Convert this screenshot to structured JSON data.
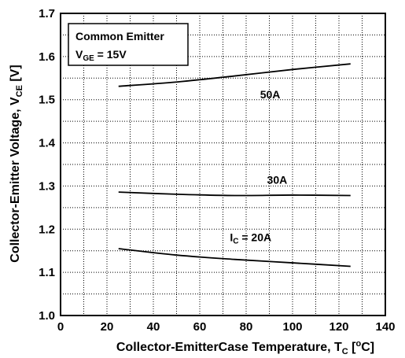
{
  "chart_data": {
    "type": "line",
    "xlabel": "Collector-EmitterCase Temperature, T",
    "xlabel_sub": "C",
    "xlabel_unit_open": " [",
    "xlabel_unit_sup": "o",
    "xlabel_unit_close": "C]",
    "ylabel": "Collector-Emitter Voltage, V",
    "ylabel_sub": "CE",
    "ylabel_unit": " [V]",
    "xlim": [
      0,
      140
    ],
    "ylim": [
      1.0,
      1.7
    ],
    "x_ticks": [
      "0",
      "20",
      "40",
      "60",
      "80",
      "100",
      "120",
      "140"
    ],
    "y_ticks": [
      "1.0",
      "1.1",
      "1.2",
      "1.3",
      "1.4",
      "1.5",
      "1.6",
      "1.7"
    ],
    "grid": true,
    "grid_style": "dotted",
    "legend_box": {
      "line1": "Common Emitter",
      "line2_prefix": "V",
      "line2_sub": "GE",
      "line2_suffix": " = 15V",
      "placement": "top-left"
    },
    "series": [
      {
        "x": [
          25,
          50,
          75,
          100,
          125
        ],
        "y": [
          1.531,
          1.541,
          1.555,
          1.57,
          1.583
        ]
      },
      {
        "x": [
          25,
          50,
          75,
          100,
          125
        ],
        "y": [
          1.286,
          1.281,
          1.278,
          1.279,
          1.278
        ]
      },
      {
        "x": [
          25,
          50,
          75,
          100,
          125
        ],
        "y": [
          1.155,
          1.14,
          1.13,
          1.122,
          1.114
        ]
      }
    ],
    "annotations": [
      {
        "text": "50A",
        "x": 86,
        "y": 1.503
      },
      {
        "text": "30A",
        "x": 89,
        "y": 1.305
      },
      {
        "prefix": "I",
        "sub": "C",
        "text": " = 20A",
        "x": 73,
        "y": 1.172
      }
    ]
  }
}
